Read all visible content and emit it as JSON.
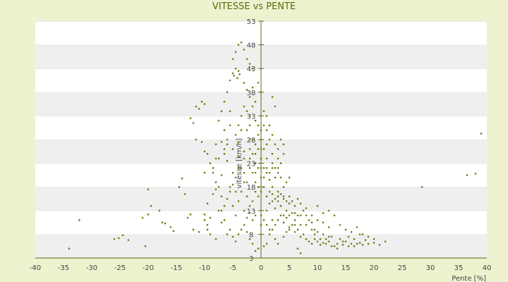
{
  "chart_data": {
    "type": "scatter",
    "title": "VITESSE vs PENTE",
    "xlabel": "Pente [%]",
    "ylabel": "vitesse [km/h]",
    "xlim": [
      -40,
      40
    ],
    "ylim": [
      3,
      53
    ],
    "x_ticks": [
      -40,
      -35,
      -30,
      -25,
      -20,
      -15,
      -10,
      -5,
      0,
      5,
      10,
      15,
      20,
      25,
      30,
      35,
      40
    ],
    "y_ticks": [
      3,
      8,
      13,
      18,
      23,
      28,
      33,
      38,
      43,
      48,
      53
    ],
    "grid": "alternating horizontal bands",
    "colors": {
      "point": "#6b7d10",
      "background": "#eef2cf",
      "band": "#efefef",
      "axis": "#556b1a"
    },
    "series": [
      {
        "points": [
          [
            -34,
            5
          ],
          [
            -32.2,
            11
          ],
          [
            -26,
            7
          ],
          [
            -25.2,
            7.2
          ],
          [
            -24.5,
            7.8
          ],
          [
            -23.5,
            6.8
          ],
          [
            -20.5,
            5.5
          ],
          [
            -21,
            11.5
          ],
          [
            -20,
            12.2
          ],
          [
            -20,
            17.5
          ],
          [
            -19.5,
            14
          ],
          [
            -18,
            13
          ],
          [
            -17.5,
            10.5
          ],
          [
            -17,
            10.3
          ],
          [
            -16,
            9.5
          ],
          [
            -15.5,
            8.7
          ],
          [
            -14.5,
            18
          ],
          [
            -14,
            19.8
          ],
          [
            -13.5,
            16.5
          ],
          [
            -13,
            11.5
          ],
          [
            -12.5,
            12.2
          ],
          [
            -12.5,
            32.5
          ],
          [
            -12,
            31.5
          ],
          [
            -11,
            34.5
          ],
          [
            -10.5,
            36
          ],
          [
            -11.5,
            35
          ],
          [
            -10,
            35.5
          ],
          [
            -11.5,
            28
          ],
          [
            -10.5,
            27.5
          ],
          [
            -10,
            25.5
          ],
          [
            -9.5,
            14.5
          ],
          [
            -10,
            12.2
          ],
          [
            -9.5,
            10
          ],
          [
            -9,
            11.5
          ],
          [
            -8.5,
            16.5
          ],
          [
            -8.5,
            21
          ],
          [
            -8,
            24
          ],
          [
            -8,
            17.5
          ],
          [
            -7.5,
            13
          ],
          [
            -7,
            10.5
          ],
          [
            -7,
            20.5
          ],
          [
            -6.5,
            25
          ],
          [
            -6,
            23.5
          ],
          [
            -6,
            28
          ],
          [
            -5.5,
            31
          ],
          [
            -5.5,
            18
          ],
          [
            -5,
            21
          ],
          [
            -5,
            14
          ],
          [
            -4.5,
            12
          ],
          [
            -4.5,
            17
          ],
          [
            -4,
            24.5
          ],
          [
            -4,
            27.5
          ],
          [
            -3.5,
            22
          ],
          [
            -3.5,
            30
          ],
          [
            -3,
            25.5
          ],
          [
            -3,
            21
          ],
          [
            -2.5,
            19
          ],
          [
            -2,
            24
          ],
          [
            -2,
            28
          ],
          [
            -1.5,
            25
          ],
          [
            -1.5,
            21
          ],
          [
            -1,
            23
          ],
          [
            -1,
            19
          ],
          [
            -0.5,
            26
          ],
          [
            -0.5,
            22
          ],
          [
            0,
            24
          ],
          [
            0,
            20
          ],
          [
            0,
            28
          ],
          [
            0.5,
            22
          ],
          [
            0.5,
            26
          ],
          [
            1,
            21
          ],
          [
            1,
            24
          ],
          [
            1.5,
            19.5
          ],
          [
            2,
            22
          ],
          [
            2,
            18
          ],
          [
            2.5,
            20
          ],
          [
            3,
            21
          ],
          [
            3,
            17
          ],
          [
            3.5,
            23
          ],
          [
            4,
            18
          ],
          [
            4,
            25
          ],
          [
            -5,
            42
          ],
          [
            -4.8,
            41.5
          ],
          [
            -4.5,
            43
          ],
          [
            -4.2,
            41
          ],
          [
            -4,
            42.5
          ],
          [
            -5.5,
            40.5
          ],
          [
            -3.8,
            41.8
          ],
          [
            -5,
            45
          ],
          [
            -4.5,
            46.5
          ],
          [
            -4,
            48
          ],
          [
            -3.5,
            48.5
          ],
          [
            -3,
            47
          ],
          [
            -2.5,
            45
          ],
          [
            -2,
            44
          ],
          [
            -1.5,
            43
          ],
          [
            -3,
            40
          ],
          [
            -2.5,
            38.5
          ],
          [
            -2,
            37
          ],
          [
            -1.5,
            39
          ],
          [
            -1,
            36
          ],
          [
            -0.5,
            40
          ],
          [
            0,
            38
          ],
          [
            -2.5,
            34
          ],
          [
            -2,
            33
          ],
          [
            -1.5,
            35
          ],
          [
            -1,
            32
          ],
          [
            -0.5,
            31
          ],
          [
            0.5,
            34
          ],
          [
            1,
            33
          ],
          [
            1.5,
            31
          ],
          [
            2,
            37
          ],
          [
            2.5,
            35
          ],
          [
            -6,
            38
          ],
          [
            -6.5,
            36
          ],
          [
            -7,
            34
          ],
          [
            -7.5,
            32
          ],
          [
            -6.5,
            30
          ],
          [
            -5.5,
            34
          ],
          [
            1,
            13
          ],
          [
            1.5,
            14.5
          ],
          [
            2,
            15
          ],
          [
            2.5,
            13.5
          ],
          [
            3,
            16
          ],
          [
            3.5,
            14
          ],
          [
            4,
            15.5
          ],
          [
            4.5,
            13
          ],
          [
            5,
            14.5
          ],
          [
            5.5,
            12.5
          ],
          [
            6,
            11
          ],
          [
            6.5,
            12
          ],
          [
            7,
            10
          ],
          [
            3,
            11
          ],
          [
            3.5,
            12
          ],
          [
            4,
            10.5
          ],
          [
            4.5,
            11.5
          ],
          [
            5,
            9.5
          ],
          [
            5.5,
            10
          ],
          [
            6,
            8.5
          ],
          [
            6.5,
            9
          ],
          [
            7,
            7.5
          ],
          [
            7.5,
            8
          ],
          [
            8,
            7
          ],
          [
            8.5,
            6.5
          ],
          [
            9,
            6
          ],
          [
            9.5,
            7
          ],
          [
            10,
            6.5
          ],
          [
            10.5,
            5.8
          ],
          [
            11,
            6.2
          ],
          [
            11.5,
            7
          ],
          [
            12,
            6.5
          ],
          [
            12.5,
            7.5
          ],
          [
            13,
            5.5
          ],
          [
            13.5,
            6
          ],
          [
            14,
            7
          ],
          [
            14.5,
            5.8
          ],
          [
            15,
            6.5
          ],
          [
            15.5,
            5.5
          ],
          [
            16,
            6
          ],
          [
            16.5,
            5.5
          ],
          [
            17,
            6
          ],
          [
            17.5,
            6.2
          ],
          [
            18,
            5.8
          ],
          [
            19,
            6
          ],
          [
            20,
            6.2
          ],
          [
            21,
            5.8
          ],
          [
            22,
            6.5
          ],
          [
            10,
            14
          ],
          [
            11,
            12.5
          ],
          [
            12,
            13
          ],
          [
            13,
            12
          ],
          [
            14,
            10
          ],
          [
            15,
            9
          ],
          [
            16,
            8.5
          ],
          [
            17,
            9.5
          ],
          [
            18,
            8
          ],
          [
            19,
            7.5
          ],
          [
            20,
            7
          ],
          [
            8,
            13.5
          ],
          [
            9,
            12
          ],
          [
            10,
            11
          ],
          [
            11,
            10.5
          ],
          [
            12,
            9.5
          ],
          [
            2,
            9
          ],
          [
            1.5,
            8
          ],
          [
            2.5,
            7
          ],
          [
            3,
            6
          ],
          [
            4,
            7.5
          ],
          [
            4.5,
            8.5
          ],
          [
            5,
            9
          ],
          [
            6,
            10
          ],
          [
            6.5,
            5
          ],
          [
            7,
            4
          ],
          [
            -2,
            7
          ],
          [
            -2.5,
            8.5
          ],
          [
            -3,
            10
          ],
          [
            -3.5,
            9
          ],
          [
            -4,
            8
          ],
          [
            -4.5,
            6.5
          ],
          [
            -5,
            7.5
          ],
          [
            -5.5,
            9
          ],
          [
            -6,
            8
          ],
          [
            -6.5,
            11
          ],
          [
            -7,
            13
          ],
          [
            -8,
            7
          ],
          [
            -9,
            8
          ],
          [
            -9.5,
            9
          ],
          [
            -10,
            11
          ],
          [
            -11,
            8.5
          ],
          [
            -12,
            9
          ],
          [
            -0.5,
            5
          ],
          [
            -1,
            4.5
          ],
          [
            -1.5,
            6
          ],
          [
            0.5,
            5.5
          ],
          [
            1,
            6
          ],
          [
            28.5,
            18
          ],
          [
            36.5,
            20.5
          ],
          [
            38,
            20.8
          ],
          [
            39,
            29.3
          ],
          [
            -6,
            27
          ],
          [
            -6.5,
            26
          ],
          [
            -7,
            27.5
          ],
          [
            -7.5,
            24
          ],
          [
            -8,
            27
          ],
          [
            -5,
            26
          ],
          [
            -4.5,
            29
          ],
          [
            -4,
            31
          ],
          [
            -3.5,
            33
          ],
          [
            -3,
            35
          ],
          [
            -2.5,
            30
          ],
          [
            -2,
            31
          ],
          [
            -1.5,
            28
          ],
          [
            -1,
            27
          ],
          [
            -0.5,
            29
          ],
          [
            0,
            30
          ],
          [
            0.5,
            31
          ],
          [
            1,
            30
          ],
          [
            1.5,
            28
          ],
          [
            2,
            29
          ],
          [
            2.5,
            27
          ],
          [
            3,
            26
          ],
          [
            3.5,
            28
          ],
          [
            4,
            27
          ],
          [
            -4,
            22
          ],
          [
            -4.5,
            20
          ],
          [
            -5,
            18.5
          ],
          [
            -5.5,
            17
          ],
          [
            -6,
            15.5
          ],
          [
            -6.5,
            14
          ],
          [
            -7,
            16
          ],
          [
            -7.5,
            18
          ],
          [
            -8,
            19
          ],
          [
            -8.5,
            22
          ],
          [
            -9,
            23
          ],
          [
            -9.5,
            25
          ],
          [
            -10,
            21
          ],
          [
            -3,
            19
          ],
          [
            -3.5,
            17
          ],
          [
            -4,
            15
          ],
          [
            -2.5,
            16
          ],
          [
            -2,
            14
          ],
          [
            -1.5,
            15
          ],
          [
            -1,
            17
          ],
          [
            -0.5,
            16
          ],
          [
            0,
            17
          ],
          [
            0.5,
            18
          ],
          [
            1,
            16
          ],
          [
            1.5,
            17
          ],
          [
            2,
            16.5
          ],
          [
            2.5,
            15.5
          ],
          [
            3,
            15
          ],
          [
            3.5,
            16.5
          ],
          [
            4,
            16
          ],
          [
            4.5,
            15
          ],
          [
            5,
            16
          ],
          [
            5.5,
            15
          ],
          [
            6,
            14
          ],
          [
            -1,
            12
          ],
          [
            -1.5,
            11
          ],
          [
            -2,
            12.5
          ],
          [
            -2.5,
            11.5
          ],
          [
            -3,
            13
          ],
          [
            0,
            12
          ],
          [
            0.5,
            11
          ],
          [
            0,
            10
          ],
          [
            1,
            10
          ],
          [
            1.5,
            9
          ],
          [
            2,
            11
          ],
          [
            2.5,
            10
          ],
          [
            6.5,
            15.5
          ],
          [
            7,
            14.5
          ],
          [
            7.5,
            13
          ],
          [
            8,
            12
          ],
          [
            8.5,
            11
          ],
          [
            9,
            10.5
          ],
          [
            9.5,
            9
          ],
          [
            10,
            8.5
          ],
          [
            11,
            8
          ],
          [
            12,
            7.5
          ],
          [
            -2,
            26
          ],
          [
            -1,
            25
          ],
          [
            0,
            26
          ],
          [
            1,
            27
          ],
          [
            2,
            25
          ],
          [
            3,
            24
          ],
          [
            -3,
            24
          ],
          [
            -2,
            22
          ],
          [
            -1,
            21
          ],
          [
            0,
            22
          ],
          [
            1,
            22
          ],
          [
            2,
            23
          ],
          [
            3,
            22
          ],
          [
            -0.5,
            18
          ],
          [
            0.5,
            20
          ],
          [
            1.5,
            21
          ],
          [
            2.5,
            22
          ],
          [
            3.5,
            20
          ],
          [
            4.5,
            19
          ],
          [
            5,
            20
          ],
          [
            4,
            12
          ],
          [
            5,
            12
          ],
          [
            6,
            12.5
          ],
          [
            7,
            12
          ],
          [
            8,
            10
          ],
          [
            9,
            9
          ],
          [
            9.5,
            8
          ],
          [
            10.5,
            7
          ],
          [
            11.5,
            6
          ],
          [
            12.5,
            5.5
          ],
          [
            13.5,
            5
          ],
          [
            14.5,
            6.5
          ],
          [
            15.5,
            7.5
          ],
          [
            16.5,
            7
          ],
          [
            17.5,
            8
          ],
          [
            18.5,
            6.8
          ]
        ]
      }
    ]
  }
}
